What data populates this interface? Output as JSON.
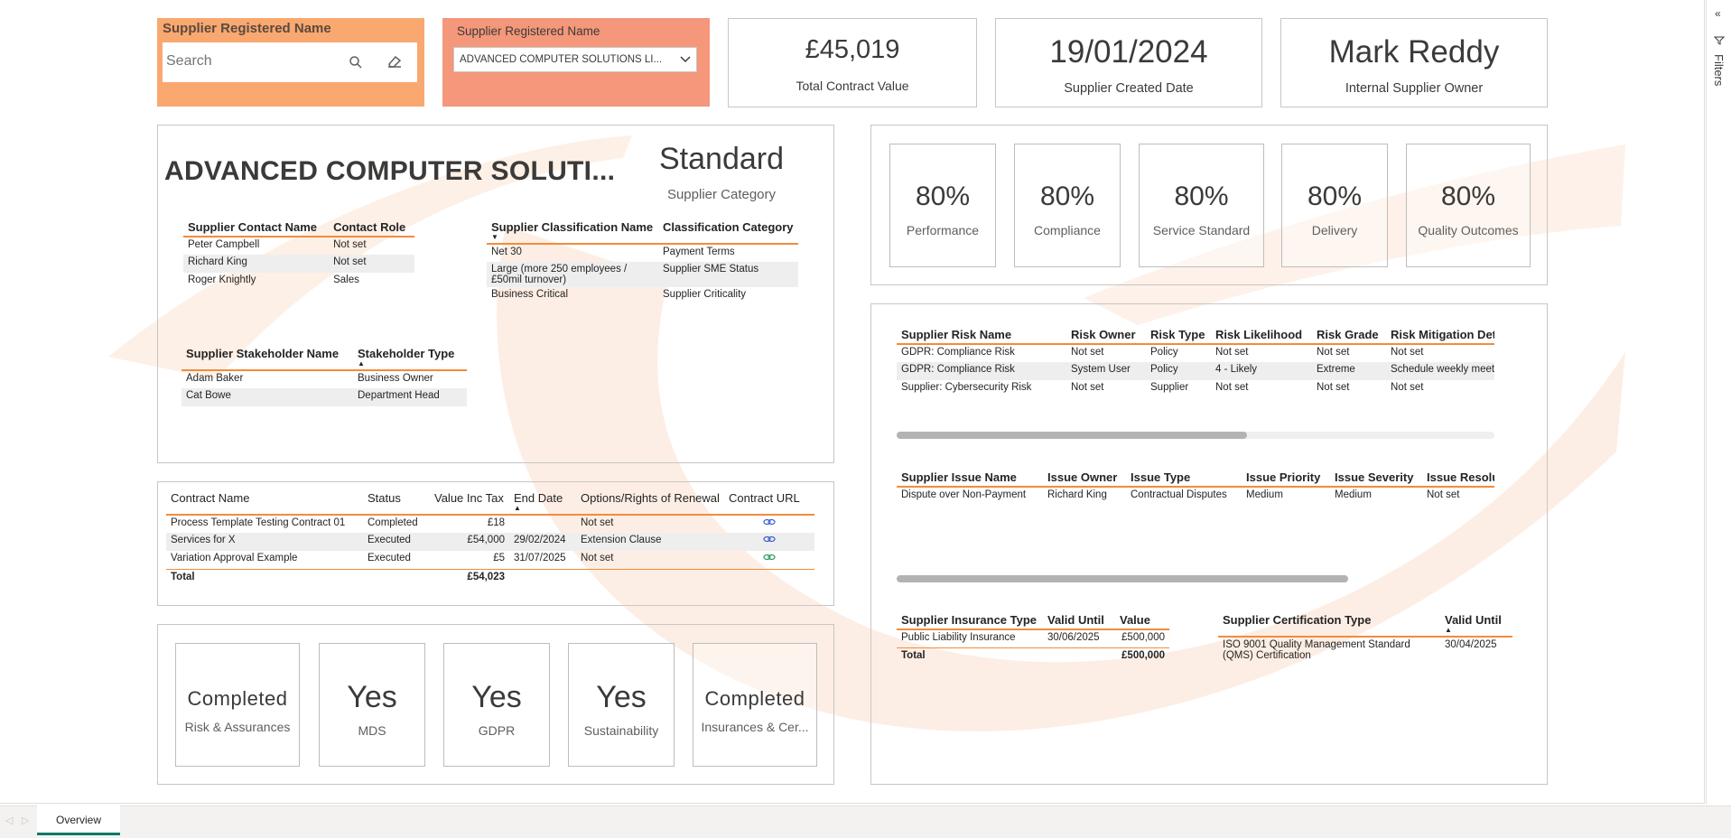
{
  "slicer1": {
    "title": "Supplier Registered Name",
    "placeholder": "Search"
  },
  "slicer2": {
    "title": "Supplier Registered Name",
    "value": "ADVANCED COMPUTER SOLUTIONS LI..."
  },
  "kpis": [
    {
      "value": "£45,019",
      "label": "Total Contract Value"
    },
    {
      "value": "19/01/2024",
      "label": "Supplier Created Date"
    },
    {
      "value": "Mark Reddy",
      "label": "Internal Supplier Owner"
    }
  ],
  "supplier": {
    "name": "ADVANCED COMPUTER SOLUTI...",
    "category_value": "Standard",
    "category_label": "Supplier Category"
  },
  "contacts": {
    "headers": [
      "Supplier Contact Name",
      "Contact Role"
    ],
    "rows": [
      [
        "Peter Campbell",
        "Not set"
      ],
      [
        "Richard King",
        "Not set"
      ],
      [
        "Roger Knightly",
        "Sales"
      ]
    ]
  },
  "classification": {
    "headers": [
      "Supplier Classification Name",
      "Classification Category"
    ],
    "rows": [
      [
        "Net 30",
        "Payment Terms"
      ],
      [
        "Large (more 250 employees / £50mil turnover)",
        "Supplier SME Status"
      ],
      [
        "Business Critical",
        "Supplier Criticality"
      ]
    ]
  },
  "stakeholders": {
    "headers": [
      "Supplier Stakeholder Name",
      "Stakeholder Type"
    ],
    "rows": [
      [
        "Adam Baker",
        "Business Owner"
      ],
      [
        "Cat Bowe",
        "Department Head"
      ]
    ]
  },
  "contracts": {
    "headers": [
      "Contract Name",
      "Status",
      "Value Inc Tax",
      "End Date",
      "Options/Rights of Renewal",
      "Contract URL"
    ],
    "rows": [
      [
        "Process Template Testing Contract 01",
        "Completed",
        "£18",
        "",
        "Not set"
      ],
      [
        "Services for X",
        "Executed",
        "£54,000",
        "29/02/2024",
        "Extension Clause"
      ],
      [
        "Variation Approval Example",
        "Executed",
        "£5",
        "31/07/2025",
        "Not set"
      ]
    ],
    "total_label": "Total",
    "total_value": "£54,023"
  },
  "status_tiles": [
    {
      "value": "Completed",
      "label": "Risk & Assurances"
    },
    {
      "value": "Yes",
      "label": "MDS"
    },
    {
      "value": "Yes",
      "label": "GDPR"
    },
    {
      "value": "Yes",
      "label": "Sustainability"
    },
    {
      "value": "Completed",
      "label": "Insurances & Cer..."
    }
  ],
  "scores": [
    {
      "value": "80%",
      "label": "Performance"
    },
    {
      "value": "80%",
      "label": "Compliance"
    },
    {
      "value": "80%",
      "label": "Service Standard"
    },
    {
      "value": "80%",
      "label": "Delivery"
    },
    {
      "value": "80%",
      "label": "Quality Outcomes"
    }
  ],
  "risks": {
    "headers": [
      "Supplier Risk Name",
      "Risk Owner",
      "Risk Type",
      "Risk Likelihood",
      "Risk Grade",
      "Risk Mitigation Detail"
    ],
    "rows": [
      [
        "GDPR: Compliance Risk",
        "Not set",
        "Policy",
        "Not set",
        "Not set",
        "Not set"
      ],
      [
        "GDPR: Compliance Risk",
        "System User",
        "Policy",
        "4 - Likely",
        "Extreme",
        "Schedule weekly meetings v"
      ],
      [
        "Supplier: Cybersecurity Risk",
        "Not set",
        "Supplier",
        "Not set",
        "Not set",
        "Not set"
      ]
    ]
  },
  "issues": {
    "headers": [
      "Supplier Issue Name",
      "Issue Owner",
      "Issue Type",
      "Issue Priority",
      "Issue Severity",
      "Issue Resolution A"
    ],
    "rows": [
      [
        "Dispute over Non-Payment",
        "Richard King",
        "Contractual Disputes",
        "Medium",
        "Medium",
        "Not set"
      ]
    ]
  },
  "insurance": {
    "headers": [
      "Supplier Insurance Type",
      "Valid Until",
      "Value"
    ],
    "rows": [
      [
        "Public Liability Insurance",
        "30/06/2025",
        "£500,000"
      ]
    ],
    "total_label": "Total",
    "total_value": "£500,000"
  },
  "certification": {
    "headers": [
      "Supplier Certification Type",
      "Valid Until"
    ],
    "rows": [
      [
        "ISO 9001 Quality Management Standard (QMS) Certification",
        "30/04/2025"
      ]
    ]
  },
  "filters_label": "Filters",
  "page_tab": "Overview",
  "colors": {
    "slicer1": "#f9a870",
    "slicer2": "#f4977a",
    "accent_line": "#f28c3c",
    "tab_underline": "#117865",
    "link_blue": "#3a5fcd",
    "link_green": "#2e9a5a"
  }
}
